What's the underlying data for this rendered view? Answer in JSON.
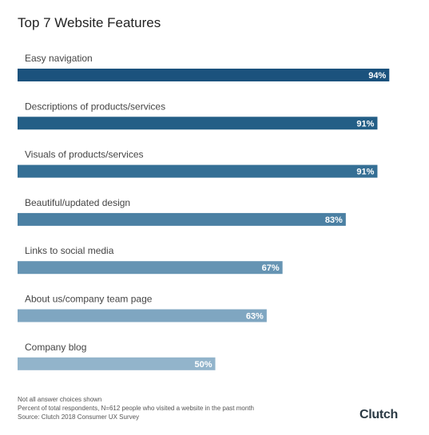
{
  "chart_data": {
    "type": "bar",
    "orientation": "horizontal",
    "title": "Top 7 Website Features",
    "categories": [
      "Easy navigation",
      "Descriptions of products/services",
      "Visuals of products/services",
      "Beautiful/updated design",
      "Links to social media",
      "About us/company team page",
      "Company blog"
    ],
    "values": [
      94,
      91,
      91,
      83,
      67,
      63,
      50
    ],
    "value_labels": [
      "94%",
      "91%",
      "91%",
      "83%",
      "67%",
      "63%",
      "50%"
    ],
    "xlim": [
      0,
      100
    ],
    "grid": false,
    "colors": [
      "#1b527d",
      "#235e86",
      "#356f95",
      "#4b80a3",
      "#6694b3",
      "#7fa6c1",
      "#92b4cb"
    ]
  },
  "footnotes": [
    "Not all answer choices shown",
    "Percent of total respondents, N=612 people who visited a website in the past month",
    "Source: Clutch 2018 Consumer UX Survey"
  ],
  "brand": "Clutch"
}
